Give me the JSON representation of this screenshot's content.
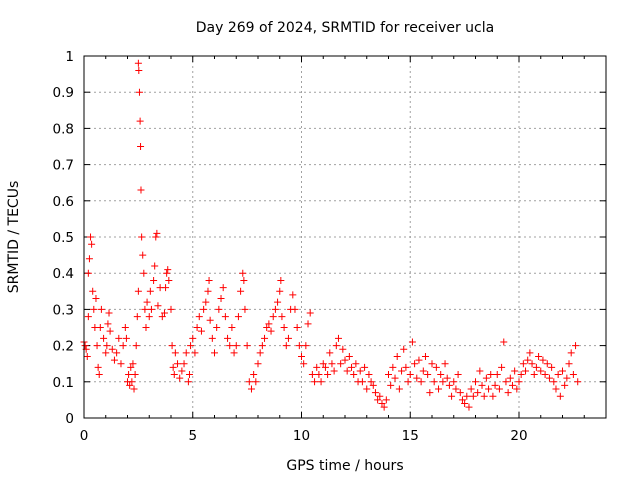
{
  "chart_data": {
    "type": "scatter",
    "title": "Day 269 of 2024, SRMTID for receiver ucla",
    "xlabel": "GPS time / hours",
    "ylabel": "SRMTID / TECUs",
    "xlim": [
      0,
      24
    ],
    "ylim": [
      0,
      1
    ],
    "grid": true,
    "marker": "plus",
    "color": "#ff0000",
    "x_ticks": [
      0,
      5,
      10,
      15,
      20
    ],
    "x_tick_labels": [
      "0",
      "5",
      "10",
      "15",
      "20"
    ],
    "y_ticks": [
      0,
      0.1,
      0.2,
      0.3,
      0.4,
      0.5,
      0.6,
      0.7,
      0.8,
      0.9,
      1
    ],
    "y_tick_labels": [
      "0",
      "0.1",
      "0.2",
      "0.3",
      "0.4",
      "0.5",
      "0.6",
      "0.7",
      "0.8",
      "0.9",
      "1"
    ],
    "series": [
      {
        "name": "SRMTID",
        "points": [
          [
            0.0,
            0.21
          ],
          [
            0.05,
            0.2
          ],
          [
            0.1,
            0.19
          ],
          [
            0.15,
            0.17
          ],
          [
            0.2,
            0.28
          ],
          [
            0.2,
            0.4
          ],
          [
            0.25,
            0.44
          ],
          [
            0.3,
            0.5
          ],
          [
            0.35,
            0.48
          ],
          [
            0.4,
            0.35
          ],
          [
            0.45,
            0.3
          ],
          [
            0.5,
            0.25
          ],
          [
            0.55,
            0.33
          ],
          [
            0.6,
            0.2
          ],
          [
            0.65,
            0.14
          ],
          [
            0.7,
            0.12
          ],
          [
            0.75,
            0.25
          ],
          [
            0.8,
            0.3
          ],
          [
            0.9,
            0.22
          ],
          [
            1.0,
            0.18
          ],
          [
            1.05,
            0.2
          ],
          [
            1.1,
            0.26
          ],
          [
            1.15,
            0.29
          ],
          [
            1.2,
            0.24
          ],
          [
            1.3,
            0.19
          ],
          [
            1.4,
            0.16
          ],
          [
            1.5,
            0.18
          ],
          [
            1.6,
            0.22
          ],
          [
            1.7,
            0.15
          ],
          [
            1.8,
            0.2
          ],
          [
            1.9,
            0.25
          ],
          [
            1.95,
            0.22
          ],
          [
            2.0,
            0.1
          ],
          [
            2.05,
            0.12
          ],
          [
            2.1,
            0.09
          ],
          [
            2.15,
            0.14
          ],
          [
            2.2,
            0.1
          ],
          [
            2.25,
            0.15
          ],
          [
            2.3,
            0.08
          ],
          [
            2.35,
            0.12
          ],
          [
            2.4,
            0.2
          ],
          [
            2.45,
            0.28
          ],
          [
            2.5,
            0.35
          ],
          [
            2.5,
            0.98
          ],
          [
            2.52,
            0.96
          ],
          [
            2.55,
            0.9
          ],
          [
            2.58,
            0.82
          ],
          [
            2.6,
            0.75
          ],
          [
            2.62,
            0.63
          ],
          [
            2.65,
            0.5
          ],
          [
            2.7,
            0.45
          ],
          [
            2.75,
            0.4
          ],
          [
            2.8,
            0.3
          ],
          [
            2.85,
            0.25
          ],
          [
            2.9,
            0.32
          ],
          [
            3.0,
            0.28
          ],
          [
            3.05,
            0.35
          ],
          [
            3.1,
            0.3
          ],
          [
            3.2,
            0.38
          ],
          [
            3.25,
            0.42
          ],
          [
            3.3,
            0.5
          ],
          [
            3.35,
            0.51
          ],
          [
            3.4,
            0.31
          ],
          [
            3.5,
            0.36
          ],
          [
            3.6,
            0.28
          ],
          [
            3.7,
            0.29
          ],
          [
            3.75,
            0.36
          ],
          [
            3.8,
            0.4
          ],
          [
            3.85,
            0.41
          ],
          [
            3.9,
            0.38
          ],
          [
            4.0,
            0.3
          ],
          [
            4.05,
            0.2
          ],
          [
            4.1,
            0.14
          ],
          [
            4.15,
            0.12
          ],
          [
            4.2,
            0.18
          ],
          [
            4.3,
            0.15
          ],
          [
            4.4,
            0.11
          ],
          [
            4.5,
            0.13
          ],
          [
            4.6,
            0.15
          ],
          [
            4.7,
            0.18
          ],
          [
            4.8,
            0.1
          ],
          [
            4.85,
            0.12
          ],
          [
            4.9,
            0.2
          ],
          [
            5.0,
            0.22
          ],
          [
            5.1,
            0.18
          ],
          [
            5.2,
            0.25
          ],
          [
            5.3,
            0.28
          ],
          [
            5.4,
            0.24
          ],
          [
            5.5,
            0.3
          ],
          [
            5.6,
            0.32
          ],
          [
            5.7,
            0.35
          ],
          [
            5.75,
            0.38
          ],
          [
            5.8,
            0.27
          ],
          [
            5.9,
            0.22
          ],
          [
            6.0,
            0.18
          ],
          [
            6.1,
            0.25
          ],
          [
            6.2,
            0.3
          ],
          [
            6.3,
            0.33
          ],
          [
            6.4,
            0.36
          ],
          [
            6.5,
            0.28
          ],
          [
            6.6,
            0.22
          ],
          [
            6.7,
            0.2
          ],
          [
            6.8,
            0.25
          ],
          [
            6.9,
            0.18
          ],
          [
            7.0,
            0.2
          ],
          [
            7.1,
            0.28
          ],
          [
            7.2,
            0.35
          ],
          [
            7.3,
            0.4
          ],
          [
            7.35,
            0.38
          ],
          [
            7.4,
            0.3
          ],
          [
            7.5,
            0.2
          ],
          [
            7.6,
            0.1
          ],
          [
            7.7,
            0.08
          ],
          [
            7.8,
            0.12
          ],
          [
            7.9,
            0.1
          ],
          [
            8.0,
            0.15
          ],
          [
            8.1,
            0.18
          ],
          [
            8.2,
            0.2
          ],
          [
            8.3,
            0.22
          ],
          [
            8.4,
            0.25
          ],
          [
            8.5,
            0.26
          ],
          [
            8.6,
            0.24
          ],
          [
            8.7,
            0.28
          ],
          [
            8.8,
            0.3
          ],
          [
            8.9,
            0.32
          ],
          [
            9.0,
            0.35
          ],
          [
            9.05,
            0.38
          ],
          [
            9.1,
            0.28
          ],
          [
            9.2,
            0.25
          ],
          [
            9.3,
            0.2
          ],
          [
            9.4,
            0.22
          ],
          [
            9.5,
            0.3
          ],
          [
            9.6,
            0.34
          ],
          [
            9.7,
            0.3
          ],
          [
            9.8,
            0.25
          ],
          [
            9.9,
            0.2
          ],
          [
            10.0,
            0.17
          ],
          [
            10.1,
            0.15
          ],
          [
            10.2,
            0.2
          ],
          [
            10.3,
            0.26
          ],
          [
            10.4,
            0.29
          ],
          [
            10.5,
            0.12
          ],
          [
            10.6,
            0.1
          ],
          [
            10.7,
            0.14
          ],
          [
            10.8,
            0.12
          ],
          [
            10.9,
            0.1
          ],
          [
            11.0,
            0.15
          ],
          [
            11.1,
            0.14
          ],
          [
            11.2,
            0.12
          ],
          [
            11.3,
            0.18
          ],
          [
            11.4,
            0.15
          ],
          [
            11.5,
            0.13
          ],
          [
            11.6,
            0.2
          ],
          [
            11.7,
            0.22
          ],
          [
            11.8,
            0.15
          ],
          [
            11.9,
            0.19
          ],
          [
            12.0,
            0.16
          ],
          [
            12.1,
            0.13
          ],
          [
            12.2,
            0.17
          ],
          [
            12.3,
            0.14
          ],
          [
            12.4,
            0.12
          ],
          [
            12.5,
            0.15
          ],
          [
            12.6,
            0.1
          ],
          [
            12.7,
            0.13
          ],
          [
            12.8,
            0.1
          ],
          [
            12.9,
            0.14
          ],
          [
            13.0,
            0.08
          ],
          [
            13.1,
            0.12
          ],
          [
            13.2,
            0.1
          ],
          [
            13.3,
            0.09
          ],
          [
            13.4,
            0.07
          ],
          [
            13.5,
            0.05
          ],
          [
            13.6,
            0.06
          ],
          [
            13.7,
            0.04
          ],
          [
            13.8,
            0.03
          ],
          [
            13.9,
            0.05
          ],
          [
            14.0,
            0.12
          ],
          [
            14.1,
            0.09
          ],
          [
            14.2,
            0.14
          ],
          [
            14.3,
            0.11
          ],
          [
            14.4,
            0.17
          ],
          [
            14.5,
            0.08
          ],
          [
            14.6,
            0.13
          ],
          [
            14.7,
            0.19
          ],
          [
            14.8,
            0.14
          ],
          [
            14.9,
            0.1
          ],
          [
            15.0,
            0.12
          ],
          [
            15.1,
            0.21
          ],
          [
            15.2,
            0.15
          ],
          [
            15.3,
            0.11
          ],
          [
            15.4,
            0.16
          ],
          [
            15.5,
            0.1
          ],
          [
            15.6,
            0.13
          ],
          [
            15.7,
            0.17
          ],
          [
            15.8,
            0.12
          ],
          [
            15.9,
            0.07
          ],
          [
            16.0,
            0.15
          ],
          [
            16.1,
            0.1
          ],
          [
            16.2,
            0.14
          ],
          [
            16.3,
            0.08
          ],
          [
            16.4,
            0.12
          ],
          [
            16.5,
            0.1
          ],
          [
            16.6,
            0.15
          ],
          [
            16.7,
            0.11
          ],
          [
            16.8,
            0.09
          ],
          [
            16.9,
            0.06
          ],
          [
            17.0,
            0.1
          ],
          [
            17.1,
            0.08
          ],
          [
            17.2,
            0.12
          ],
          [
            17.3,
            0.07
          ],
          [
            17.4,
            0.05
          ],
          [
            17.5,
            0.04
          ],
          [
            17.6,
            0.06
          ],
          [
            17.7,
            0.03
          ],
          [
            17.8,
            0.08
          ],
          [
            17.9,
            0.06
          ],
          [
            18.0,
            0.1
          ],
          [
            18.1,
            0.07
          ],
          [
            18.2,
            0.13
          ],
          [
            18.3,
            0.09
          ],
          [
            18.4,
            0.06
          ],
          [
            18.5,
            0.11
          ],
          [
            18.6,
            0.08
          ],
          [
            18.7,
            0.12
          ],
          [
            18.8,
            0.06
          ],
          [
            18.9,
            0.09
          ],
          [
            19.0,
            0.12
          ],
          [
            19.1,
            0.08
          ],
          [
            19.2,
            0.14
          ],
          [
            19.3,
            0.21
          ],
          [
            19.4,
            0.1
          ],
          [
            19.5,
            0.07
          ],
          [
            19.6,
            0.11
          ],
          [
            19.7,
            0.09
          ],
          [
            19.8,
            0.13
          ],
          [
            19.9,
            0.08
          ],
          [
            20.0,
            0.1
          ],
          [
            20.1,
            0.12
          ],
          [
            20.2,
            0.15
          ],
          [
            20.3,
            0.13
          ],
          [
            20.4,
            0.16
          ],
          [
            20.5,
            0.18
          ],
          [
            20.6,
            0.15
          ],
          [
            20.7,
            0.12
          ],
          [
            20.8,
            0.14
          ],
          [
            20.9,
            0.17
          ],
          [
            21.0,
            0.13
          ],
          [
            21.1,
            0.16
          ],
          [
            21.2,
            0.12
          ],
          [
            21.3,
            0.15
          ],
          [
            21.4,
            0.11
          ],
          [
            21.5,
            0.14
          ],
          [
            21.6,
            0.1
          ],
          [
            21.7,
            0.08
          ],
          [
            21.8,
            0.12
          ],
          [
            21.9,
            0.06
          ],
          [
            22.0,
            0.13
          ],
          [
            22.1,
            0.09
          ],
          [
            22.2,
            0.11
          ],
          [
            22.3,
            0.15
          ],
          [
            22.4,
            0.18
          ],
          [
            22.5,
            0.12
          ],
          [
            22.6,
            0.2
          ],
          [
            22.7,
            0.1
          ]
        ]
      }
    ]
  }
}
